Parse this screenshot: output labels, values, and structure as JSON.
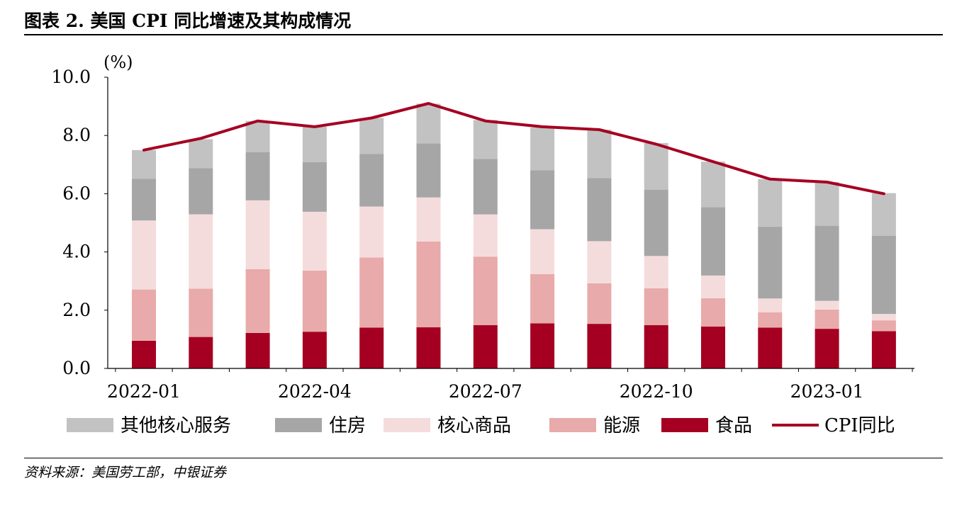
{
  "header": {
    "title": "图表 2. 美国 CPI 同比增速及其构成情况"
  },
  "footer": {
    "source": "资料来源：美国劳工部，中银证券"
  },
  "colors": {
    "other_core_services": "#c2c2c2",
    "shelter": "#a6a6a6",
    "core_goods": "#f5dcdc",
    "energy": "#e8aaaa",
    "food": "#a50021",
    "cpi_line": "#a50021"
  },
  "chart_data": {
    "type": "bar",
    "stacked": true,
    "unit_label": "(%)",
    "x": [
      "2022-01",
      "2022-02",
      "2022-03",
      "2022-04",
      "2022-05",
      "2022-06",
      "2022-07",
      "2022-08",
      "2022-09",
      "2022-10",
      "2022-11",
      "2022-12",
      "2023-01",
      "2023-02"
    ],
    "x_tick_labels": [
      "2022-01",
      "2022-04",
      "2022-07",
      "2022-10",
      "2023-01"
    ],
    "y_ticks": [
      "0.0",
      "2.0",
      "4.0",
      "6.0",
      "8.0",
      "10.0"
    ],
    "ylim": [
      0,
      10
    ],
    "series": [
      {
        "name": "食品",
        "key": "food",
        "values": [
          0.95,
          1.08,
          1.22,
          1.26,
          1.4,
          1.41,
          1.49,
          1.55,
          1.53,
          1.49,
          1.44,
          1.4,
          1.36,
          1.28
        ]
      },
      {
        "name": "能源",
        "key": "energy",
        "values": [
          1.76,
          1.66,
          2.19,
          2.1,
          2.41,
          2.95,
          2.35,
          1.69,
          1.39,
          1.26,
          0.97,
          0.53,
          0.66,
          0.37
        ]
      },
      {
        "name": "核心商品",
        "key": "core_goods",
        "values": [
          2.37,
          2.55,
          2.36,
          2.02,
          1.75,
          1.51,
          1.45,
          1.54,
          1.45,
          1.11,
          0.78,
          0.47,
          0.3,
          0.22
        ]
      },
      {
        "name": "住房",
        "key": "shelter",
        "values": [
          1.43,
          1.59,
          1.66,
          1.7,
          1.8,
          1.86,
          1.9,
          2.02,
          2.17,
          2.28,
          2.35,
          2.47,
          2.58,
          2.68
        ]
      },
      {
        "name": "其他核心服务",
        "key": "other_core_services",
        "values": [
          0.99,
          0.99,
          1.07,
          1.22,
          1.24,
          1.36,
          1.34,
          1.47,
          1.66,
          1.6,
          1.56,
          1.63,
          1.5,
          1.47
        ]
      }
    ],
    "line": {
      "name": "CPI同比",
      "key": "cpi_line",
      "values": [
        7.5,
        7.9,
        8.5,
        8.3,
        8.6,
        9.1,
        8.5,
        8.3,
        8.2,
        7.7,
        7.1,
        6.5,
        6.4,
        6.0
      ]
    },
    "legend": {
      "position": "bottom",
      "order": [
        "other_core_services",
        "shelter",
        "core_goods",
        "energy",
        "food",
        "cpi_line"
      ],
      "labels": [
        "其他核心服务",
        "住房",
        "核心商品",
        "能源",
        "食品",
        "CPI同比"
      ]
    }
  }
}
